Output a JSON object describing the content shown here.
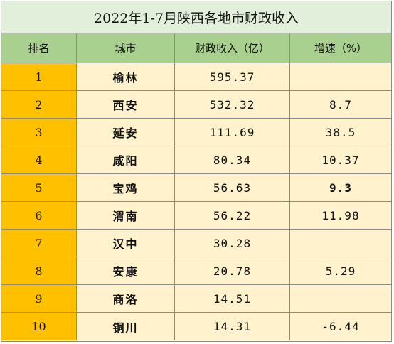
{
  "table": {
    "title": "2022年1-7月陕西各地市财政收入",
    "headers": [
      "排名",
      "城市",
      "财政收入（亿）",
      "增速（%）"
    ],
    "rows": [
      {
        "rank": "1",
        "city": "榆林",
        "revenue": "595.37",
        "growth": ""
      },
      {
        "rank": "2",
        "city": "西安",
        "revenue": "532.32",
        "growth": "8.7"
      },
      {
        "rank": "3",
        "city": "延安",
        "revenue": "111.69",
        "growth": "38.5"
      },
      {
        "rank": "4",
        "city": "咸阳",
        "revenue": "80.34",
        "growth": "10.37"
      },
      {
        "rank": "5",
        "city": "宝鸡",
        "revenue": "56.63",
        "growth": "9.3"
      },
      {
        "rank": "6",
        "city": "渭南",
        "revenue": "56.22",
        "growth": "11.98"
      },
      {
        "rank": "7",
        "city": "汉中",
        "revenue": "30.28",
        "growth": ""
      },
      {
        "rank": "8",
        "city": "安康",
        "revenue": "20.78",
        "growth": "5.29"
      },
      {
        "rank": "9",
        "city": "商洛",
        "revenue": "14.51",
        "growth": ""
      },
      {
        "rank": "10",
        "city": "铜川",
        "revenue": "14.31",
        "growth": "-6.44"
      }
    ]
  },
  "colors": {
    "title_bg": "#e2efda",
    "header_bg": "#a9d08e",
    "rank_bg": "#ffc000",
    "cell_bg": "#fff2cc",
    "border": "#8a8a8a"
  }
}
